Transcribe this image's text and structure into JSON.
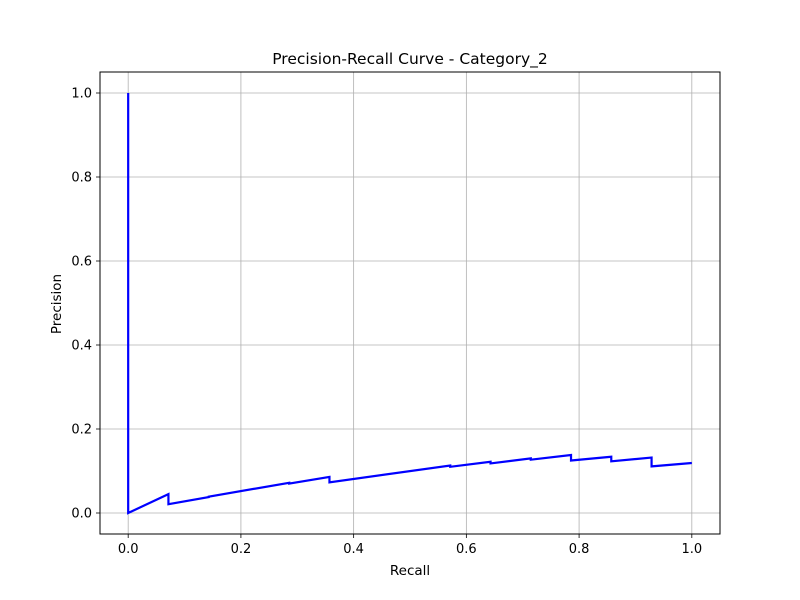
{
  "chart_data": {
    "type": "line",
    "title": "Precision-Recall Curve - Category_2",
    "xlabel": "Recall",
    "ylabel": "Precision",
    "xlim": [
      -0.05,
      1.05
    ],
    "ylim": [
      -0.05,
      1.05
    ],
    "xticks": [
      0.0,
      0.2,
      0.4,
      0.6,
      0.8,
      1.0
    ],
    "xtick_labels": [
      "0.0",
      "0.2",
      "0.4",
      "0.6",
      "0.8",
      "1.0"
    ],
    "yticks": [
      0.0,
      0.2,
      0.4,
      0.6,
      0.8,
      1.0
    ],
    "ytick_labels": [
      "0.0",
      "0.2",
      "0.4",
      "0.6",
      "0.8",
      "1.0"
    ],
    "grid": true,
    "series": [
      {
        "color": "#0000ff",
        "x": [
          0.0,
          0.0,
          0.0714,
          0.0714,
          0.1429,
          0.1429,
          0.2857,
          0.2857,
          0.3571,
          0.3571,
          0.5714,
          0.5714,
          0.6429,
          0.6429,
          0.7143,
          0.7143,
          0.7857,
          0.7857,
          0.8571,
          0.8571,
          0.9286,
          0.9286,
          1.0
        ],
        "y": [
          1.0,
          0.0,
          0.045,
          0.021,
          0.038,
          0.039,
          0.072,
          0.07,
          0.086,
          0.073,
          0.113,
          0.11,
          0.122,
          0.118,
          0.13,
          0.127,
          0.138,
          0.125,
          0.134,
          0.123,
          0.132,
          0.111,
          0.119
        ]
      }
    ]
  }
}
